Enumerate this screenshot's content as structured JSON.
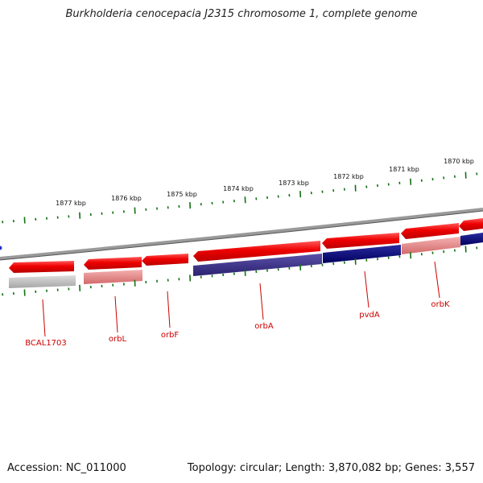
{
  "title": "Burkholderia cenocepacia J2315 chromosome 1, complete genome",
  "footer": {
    "accession": "Accession: NC_011000",
    "topology": "Topology: circular; Length: 3,870,082 bp; Genes: 3,557"
  },
  "colors": {
    "forward_gene": "#ee0000",
    "forward_gene_light": "#ff4a4a",
    "reverse_gene": "#00006e",
    "reverse_gene_alt": "#3b2e86",
    "pseudo_gene": "#b9b9b9",
    "label_red": "#cc0000",
    "tick_green": "#127012",
    "backbone": "#7a7a7a"
  },
  "scale": {
    "ticks": [
      "1877 kbp",
      "1876 kbp",
      "1875 kbp",
      "1874 kbp",
      "1873 kbp",
      "1872 kbp",
      "1871 kbp",
      "1870 kbp"
    ]
  },
  "genes": [
    {
      "name": "BCAL1703"
    },
    {
      "name": "orbL"
    },
    {
      "name": "orbF"
    },
    {
      "name": "orbA"
    },
    {
      "name": "pvdA"
    },
    {
      "name": "orbK"
    }
  ]
}
